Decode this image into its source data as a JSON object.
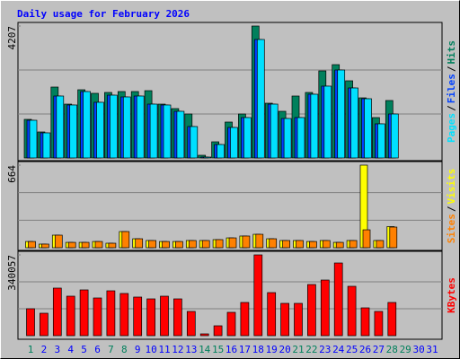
{
  "legend_separator": "/",
  "chart_data": [
    {
      "type": "grouped-bar",
      "title": "Daily usage for February 2026",
      "ylim": [
        0,
        4207
      ],
      "yticks": [
        4207
      ],
      "series": [
        {
          "name": "Hits",
          "color": "#00805c",
          "values": [
            1231,
            830,
            2261,
            1717,
            2175,
            2061,
            2089,
            2118,
            2118,
            2146,
            1717,
            1574,
            1402,
            86,
            515,
            1145,
            1402,
            4207,
            1746,
            1488,
            1975,
            2089,
            2776,
            2976,
            2461,
            1917,
            1288,
            1832,
            0,
            0,
            0
          ]
        },
        {
          "name": "Files",
          "color": "#0040ff",
          "values": [
            1202,
            801,
            1975,
            1689,
            2118,
            1775,
            2003,
            1946,
            1975,
            1717,
            1689,
            1488,
            1002,
            29,
            429,
            973,
            1288,
            3778,
            1717,
            1259,
            1288,
            2032,
            2290,
            2805,
            2232,
            1889,
            1088,
            1402,
            0,
            0,
            0
          ]
        },
        {
          "name": "Pages",
          "color": "#00e0ff",
          "values": [
            1202,
            801,
            1975,
            1689,
            2118,
            1775,
            2003,
            1946,
            1975,
            1717,
            1689,
            1488,
            1002,
            29,
            429,
            973,
            1288,
            3778,
            1717,
            1259,
            1288,
            2032,
            2290,
            2805,
            2232,
            1889,
            1088,
            1402,
            0,
            0,
            0
          ]
        }
      ]
    },
    {
      "type": "grouped-bar",
      "ylim": [
        0,
        664
      ],
      "yticks": [
        664
      ],
      "series": [
        {
          "name": "Visits",
          "color": "#ffff00",
          "values": [
            50,
            29,
            101,
            43,
            43,
            50,
            36,
            130,
            72,
            58,
            50,
            50,
            58,
            58,
            65,
            79,
            94,
            108,
            72,
            58,
            58,
            50,
            58,
            43,
            58,
            664,
            58,
            170,
            0,
            0,
            0
          ]
        },
        {
          "name": "Sites",
          "color": "#ff8000",
          "values": [
            50,
            29,
            101,
            43,
            43,
            50,
            36,
            130,
            72,
            58,
            50,
            50,
            58,
            58,
            65,
            79,
            94,
            108,
            72,
            58,
            58,
            50,
            58,
            43,
            58,
            144,
            58,
            166,
            0,
            0,
            0
          ]
        }
      ]
    },
    {
      "type": "bar",
      "ylim": [
        0,
        340057
      ],
      "yticks": [
        340057
      ],
      "categories": [
        "1",
        "2",
        "3",
        "4",
        "5",
        "6",
        "7",
        "8",
        "9",
        "10",
        "11",
        "12",
        "13",
        "14",
        "15",
        "16",
        "17",
        "18",
        "19",
        "20",
        "21",
        "22",
        "23",
        "24",
        "25",
        "26",
        "27",
        "28",
        "29",
        "30",
        "31"
      ],
      "category_colors": [
        "#00805c",
        "#0000ff",
        "#0000ff",
        "#0000ff",
        "#0000ff",
        "#0000ff",
        "#00805c",
        "#00805c",
        "#0000ff",
        "#0000ff",
        "#0000ff",
        "#0000ff",
        "#0000ff",
        "#00805c",
        "#00805c",
        "#0000ff",
        "#0000ff",
        "#0000ff",
        "#0000ff",
        "#0000ff",
        "#00805c",
        "#00805c",
        "#0000ff",
        "#0000ff",
        "#0000ff",
        "#0000ff",
        "#0000ff",
        "#00805c",
        "#00805c",
        "#0000ff",
        "#0000ff"
      ],
      "series": [
        {
          "name": "KBytes",
          "color": "#ff0000",
          "values": [
            113352,
            94450,
            200252,
            166240,
            192700,
            158700,
            188900,
            177600,
            162500,
            154900,
            166200,
            154900,
            102000,
            7556,
            41560,
            98230,
            139800,
            340057,
            181300,
            136000,
            136000,
            215300,
            234200,
            306000,
            207800,
            117100,
            102000,
            139800,
            0,
            0,
            0
          ]
        }
      ]
    }
  ]
}
